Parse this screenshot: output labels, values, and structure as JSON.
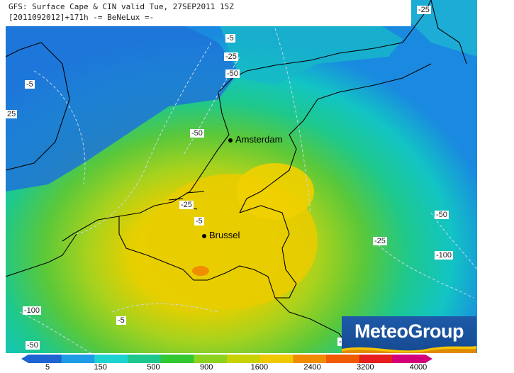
{
  "title": {
    "line1": "GFS: Surface Cape & CIN valid Tue, 27SEP2011 15Z",
    "line2": "[2011092012]+171h -= BeNeLux =-"
  },
  "cities": [
    {
      "name": "Amsterdam"
    },
    {
      "name": "Brussel"
    }
  ],
  "cin_labels": [
    "-25",
    "-5",
    "-25",
    "-50",
    "-5",
    "25",
    "-50",
    "-25",
    "-5",
    "-25",
    "-50",
    "-100",
    "-100",
    "-5",
    "-50",
    "-5"
  ],
  "logo": {
    "text": "MeteoGroup"
  },
  "scale": {
    "ticks": [
      "5",
      "150",
      "500",
      "900",
      "1600",
      "2400",
      "3200",
      "4000"
    ],
    "colors": [
      "#1e64d2",
      "#1e9be6",
      "#1ed2d2",
      "#1ec88c",
      "#32c832",
      "#8cd21e",
      "#c8d200",
      "#f0c800",
      "#f08c00",
      "#f05a00",
      "#e61e1e",
      "#d2007a"
    ]
  }
}
